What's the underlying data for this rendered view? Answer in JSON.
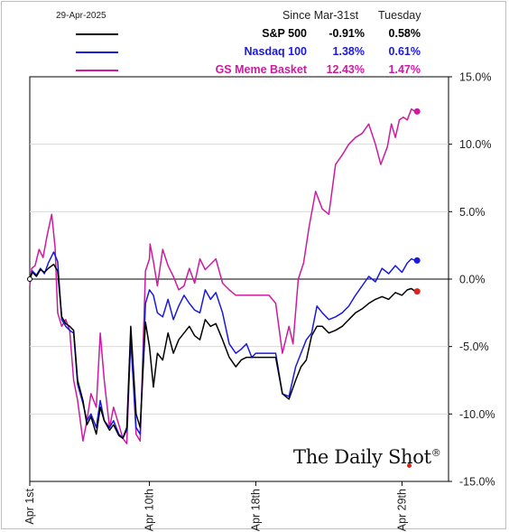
{
  "legend": {
    "date": "29-Apr-2025",
    "col1_header": "Since Mar-31st",
    "col2_header": "Tuesday",
    "entries": [
      {
        "name": "S&P 500",
        "since": "-0.91%",
        "tuesday": "0.58%",
        "color": "#000000"
      },
      {
        "name": "Nasdaq 100",
        "since": "1.38%",
        "tuesday": "0.61%",
        "color": "#1a1adb"
      },
      {
        "name": "GS Meme Basket",
        "since": "12.43%",
        "tuesday": "1.47%",
        "color": "#cc1ba0"
      }
    ]
  },
  "watermark": {
    "text": "The Daily Shot",
    "mark": "®"
  },
  "chart_data": {
    "type": "line",
    "x_ticks": [
      "Apr 1st",
      "Apr 10th",
      "Apr 18th",
      "Apr 29th"
    ],
    "y_ticks": [
      "15.0%",
      "10.0%",
      "5.0%",
      "0.0%",
      "-5.0%",
      "-10.0%",
      "-15.0%"
    ],
    "ylim": [
      -15,
      15
    ],
    "y_axis_position": "right",
    "grid": "horizontal",
    "series": [
      {
        "name": "GS Meme Basket",
        "color": "#cc1ba0",
        "end_marker_color": "#cc1ba0",
        "x": [
          0,
          0.15,
          0.4,
          0.7,
          1.0,
          1.3,
          1.65,
          1.9,
          2.1,
          2.4,
          2.7,
          3.0,
          3.3,
          3.6,
          4.0,
          4.3,
          4.6,
          5.0,
          5.3,
          5.6,
          6.0,
          6.3,
          6.7,
          7.0,
          7.3,
          7.6,
          8.0,
          8.3,
          8.7,
          9.0,
          9.05,
          9.3,
          9.6,
          10.0,
          10.4,
          10.8,
          11.2,
          11.6,
          12.0,
          12.4,
          12.8,
          13.2,
          13.6,
          14.0,
          14.5,
          15.0,
          15.5,
          15.9,
          16.1,
          16.5,
          17.0,
          17.5,
          18.0,
          18.5,
          19.0,
          19.5,
          19.8,
          20.2,
          20.6,
          21.0,
          21.5,
          22.0,
          22.5,
          23.0,
          23.5,
          24.0,
          24.5,
          25.0,
          25.5,
          26.0,
          26.4,
          26.9,
          27.2,
          27.5,
          27.8,
          28.1,
          28.4,
          28.7,
          29.0
        ],
        "y": [
          -0.5,
          0.8,
          1.0,
          2.2,
          1.6,
          3.2,
          4.8,
          2.4,
          -2.5,
          -3.5,
          -3.0,
          -3.8,
          -7.5,
          -9.0,
          -12.0,
          -10.5,
          -8.5,
          -9.5,
          -4.0,
          -7.5,
          -11.0,
          -9.5,
          -10.8,
          -11.8,
          -12.2,
          -4.0,
          -11.5,
          -12.0,
          0.6,
          1.5,
          2.6,
          1.3,
          -0.5,
          2.2,
          1.0,
          0.2,
          -0.8,
          -0.5,
          0.8,
          -0.3,
          1.5,
          0.7,
          1.1,
          1.5,
          -0.3,
          -0.8,
          -1.2,
          -1.2,
          -1.2,
          -1.2,
          -1.2,
          -1.2,
          -1.2,
          -1.8,
          -5.5,
          -3.5,
          -4.8,
          0.0,
          1.2,
          3.8,
          6.5,
          5.2,
          4.8,
          8.5,
          9.2,
          10.0,
          10.5,
          10.8,
          11.5,
          10.0,
          8.5,
          9.8,
          11.5,
          10.5,
          11.8,
          12.0,
          11.8,
          12.6,
          12.43
        ]
      },
      {
        "name": "Nasdaq 100",
        "color": "#1a1adb",
        "end_marker_color": "#1a1adb",
        "x": [
          0,
          0.2,
          0.5,
          0.8,
          1.1,
          1.4,
          1.8,
          2.1,
          2.4,
          2.7,
          3.0,
          3.3,
          3.6,
          4.0,
          4.3,
          4.6,
          5.0,
          5.3,
          5.6,
          6.0,
          6.3,
          6.7,
          7.0,
          7.3,
          7.6,
          8.0,
          8.3,
          8.7,
          9.0,
          9.3,
          9.6,
          10.0,
          10.4,
          10.8,
          11.2,
          11.6,
          12.0,
          12.4,
          12.8,
          13.2,
          13.6,
          14.0,
          14.5,
          15.0,
          15.5,
          15.9,
          16.3,
          16.7,
          17.0,
          17.5,
          18.0,
          18.5,
          19.0,
          19.5,
          20.0,
          20.4,
          20.8,
          21.2,
          21.6,
          22.0,
          22.5,
          23.0,
          23.5,
          24.0,
          24.5,
          25.0,
          25.5,
          26.0,
          26.5,
          27.0,
          27.5,
          28.0,
          28.4,
          28.7,
          29.0
        ],
        "y": [
          0.0,
          0.6,
          0.3,
          0.8,
          0.4,
          1.2,
          2.0,
          1.3,
          -3.0,
          -3.5,
          -3.8,
          -4.0,
          -7.8,
          -9.2,
          -10.5,
          -10.0,
          -11.0,
          -9.0,
          -10.5,
          -11.0,
          -10.5,
          -11.5,
          -11.8,
          -11.2,
          -4.5,
          -11.0,
          -11.5,
          -1.8,
          -0.8,
          -1.2,
          -2.5,
          -2.8,
          -1.5,
          -3.0,
          -2.0,
          -1.2,
          -1.8,
          -2.3,
          -2.5,
          -0.8,
          -1.5,
          -1.0,
          -2.5,
          -4.8,
          -5.5,
          -5.2,
          -4.8,
          -5.8,
          -5.5,
          -5.5,
          -5.5,
          -5.5,
          -8.5,
          -8.7,
          -6.5,
          -5.5,
          -4.5,
          -4.0,
          -2.0,
          -2.5,
          -3.0,
          -2.8,
          -2.5,
          -2.0,
          -1.2,
          -0.5,
          0.2,
          -0.2,
          0.8,
          0.4,
          1.0,
          0.5,
          1.2,
          1.5,
          1.38
        ]
      },
      {
        "name": "S&P 500",
        "color": "#000000",
        "end_marker_color": "#e0201b",
        "x": [
          0,
          0.2,
          0.5,
          0.8,
          1.1,
          1.4,
          1.8,
          2.1,
          2.4,
          2.7,
          3.0,
          3.3,
          3.6,
          4.0,
          4.3,
          4.6,
          5.0,
          5.3,
          5.6,
          6.0,
          6.3,
          6.7,
          7.0,
          7.3,
          7.6,
          8.0,
          8.3,
          8.7,
          9.0,
          9.3,
          9.6,
          10.0,
          10.4,
          10.8,
          11.2,
          11.6,
          12.0,
          12.4,
          12.8,
          13.2,
          13.6,
          14.0,
          14.5,
          15.0,
          15.5,
          15.9,
          16.3,
          16.7,
          17.0,
          17.5,
          18.0,
          18.5,
          19.0,
          19.5,
          20.0,
          20.4,
          20.8,
          21.2,
          21.6,
          22.0,
          22.5,
          23.0,
          23.5,
          24.0,
          24.5,
          25.0,
          25.5,
          26.0,
          26.5,
          27.0,
          27.5,
          28.0,
          28.4,
          28.7,
          29.0
        ],
        "y": [
          0.0,
          0.5,
          0.2,
          0.7,
          0.5,
          0.8,
          1.1,
          0.6,
          -2.8,
          -3.3,
          -3.5,
          -3.8,
          -7.5,
          -9.0,
          -10.8,
          -10.2,
          -11.5,
          -9.5,
          -10.5,
          -11.2,
          -10.8,
          -11.6,
          -11.8,
          -11.0,
          -3.5,
          -10.0,
          -11.0,
          -3.2,
          -5.0,
          -8.0,
          -5.5,
          -6.0,
          -4.0,
          -5.5,
          -4.5,
          -4.0,
          -3.5,
          -4.2,
          -4.5,
          -3.0,
          -3.5,
          -3.3,
          -4.5,
          -5.8,
          -6.5,
          -6.0,
          -5.8,
          -5.8,
          -5.8,
          -5.8,
          -5.8,
          -5.8,
          -8.5,
          -8.9,
          -7.5,
          -6.5,
          -6.0,
          -4.2,
          -3.5,
          -3.5,
          -4.0,
          -3.8,
          -3.5,
          -3.0,
          -2.5,
          -2.2,
          -1.8,
          -1.5,
          -1.3,
          -1.5,
          -1.0,
          -1.2,
          -0.8,
          -0.7,
          -0.91
        ]
      }
    ]
  }
}
